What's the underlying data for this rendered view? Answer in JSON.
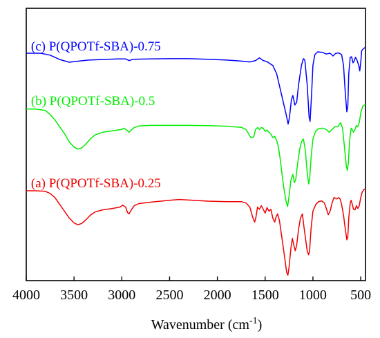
{
  "chart_data": {
    "type": "line",
    "title": "",
    "xlabel": "Wavenumber (cm",
    "xlabel_sup": "-1",
    "xlabel_tail": ")",
    "ylabel": "",
    "xlim": [
      4000,
      450
    ],
    "x_reversed": true,
    "ylim": [
      0,
      1
    ],
    "y_ticks_shown": false,
    "grid": false,
    "legend": "inline labels above each curve",
    "x_ticks": [
      {
        "value": 4000,
        "label": "4000"
      },
      {
        "value": 3500,
        "label": "3500"
      },
      {
        "value": 3000,
        "label": "3000"
      },
      {
        "value": 2500,
        "label": "2500"
      },
      {
        "value": 2000,
        "label": "2000"
      },
      {
        "value": 1500,
        "label": "1500"
      },
      {
        "value": 1000,
        "label": "1000"
      },
      {
        "value": 500,
        "label": "500"
      }
    ],
    "series": [
      {
        "name": "(c) P(QPOTf-SBA)-0.75",
        "color": "#0000ff",
        "label_anchor": [
          3950,
          0.845
        ],
        "points": [
          [
            4000,
            0.835
          ],
          [
            3850,
            0.835
          ],
          [
            3750,
            0.828
          ],
          [
            3650,
            0.812
          ],
          [
            3550,
            0.802
          ],
          [
            3450,
            0.806
          ],
          [
            3350,
            0.81
          ],
          [
            3200,
            0.812
          ],
          [
            3050,
            0.814
          ],
          [
            2960,
            0.814
          ],
          [
            2925,
            0.808
          ],
          [
            2880,
            0.813
          ],
          [
            2700,
            0.814
          ],
          [
            2500,
            0.815
          ],
          [
            2300,
            0.815
          ],
          [
            2100,
            0.813
          ],
          [
            1900,
            0.81
          ],
          [
            1750,
            0.806
          ],
          [
            1660,
            0.803
          ],
          [
            1600,
            0.808
          ],
          [
            1560,
            0.818
          ],
          [
            1520,
            0.808
          ],
          [
            1480,
            0.804
          ],
          [
            1420,
            0.79
          ],
          [
            1380,
            0.76
          ],
          [
            1340,
            0.7
          ],
          [
            1300,
            0.64
          ],
          [
            1280,
            0.61
          ],
          [
            1260,
            0.575
          ],
          [
            1245,
            0.6
          ],
          [
            1225,
            0.665
          ],
          [
            1210,
            0.68
          ],
          [
            1190,
            0.645
          ],
          [
            1170,
            0.655
          ],
          [
            1150,
            0.72
          ],
          [
            1120,
            0.79
          ],
          [
            1100,
            0.815
          ],
          [
            1085,
            0.81
          ],
          [
            1060,
            0.72
          ],
          [
            1040,
            0.6
          ],
          [
            1030,
            0.585
          ],
          [
            1015,
            0.68
          ],
          [
            1000,
            0.79
          ],
          [
            980,
            0.83
          ],
          [
            950,
            0.84
          ],
          [
            900,
            0.838
          ],
          [
            860,
            0.832
          ],
          [
            820,
            0.835
          ],
          [
            790,
            0.825
          ],
          [
            760,
            0.835
          ],
          [
            730,
            0.836
          ],
          [
            700,
            0.83
          ],
          [
            680,
            0.79
          ],
          [
            660,
            0.68
          ],
          [
            645,
            0.62
          ],
          [
            635,
            0.64
          ],
          [
            625,
            0.76
          ],
          [
            610,
            0.82
          ],
          [
            595,
            0.822
          ],
          [
            580,
            0.8
          ],
          [
            570,
            0.805
          ],
          [
            555,
            0.82
          ],
          [
            540,
            0.81
          ],
          [
            520,
            0.79
          ],
          [
            510,
            0.77
          ],
          [
            500,
            0.8
          ],
          [
            490,
            0.845
          ],
          [
            460,
            0.855
          ],
          [
            450,
            0.855
          ]
        ]
      },
      {
        "name": "(b) P(QPOTf-SBA)-0.5",
        "color": "#00ee00",
        "label_anchor": [
          3950,
          0.645
        ],
        "points": [
          [
            4000,
            0.63
          ],
          [
            3900,
            0.63
          ],
          [
            3800,
            0.625
          ],
          [
            3750,
            0.61
          ],
          [
            3700,
            0.59
          ],
          [
            3650,
            0.565
          ],
          [
            3600,
            0.54
          ],
          [
            3550,
            0.51
          ],
          [
            3500,
            0.49
          ],
          [
            3460,
            0.483
          ],
          [
            3420,
            0.487
          ],
          [
            3380,
            0.5
          ],
          [
            3330,
            0.52
          ],
          [
            3280,
            0.535
          ],
          [
            3200,
            0.545
          ],
          [
            3100,
            0.55
          ],
          [
            3000,
            0.555
          ],
          [
            2975,
            0.56
          ],
          [
            2950,
            0.553
          ],
          [
            2925,
            0.545
          ],
          [
            2900,
            0.553
          ],
          [
            2870,
            0.562
          ],
          [
            2820,
            0.568
          ],
          [
            2700,
            0.57
          ],
          [
            2500,
            0.57
          ],
          [
            2300,
            0.57
          ],
          [
            2100,
            0.569
          ],
          [
            1900,
            0.567
          ],
          [
            1750,
            0.563
          ],
          [
            1700,
            0.555
          ],
          [
            1650,
            0.525
          ],
          [
            1620,
            0.528
          ],
          [
            1600,
            0.555
          ],
          [
            1580,
            0.562
          ],
          [
            1560,
            0.555
          ],
          [
            1540,
            0.562
          ],
          [
            1520,
            0.56
          ],
          [
            1500,
            0.548
          ],
          [
            1480,
            0.553
          ],
          [
            1460,
            0.545
          ],
          [
            1440,
            0.538
          ],
          [
            1420,
            0.525
          ],
          [
            1400,
            0.53
          ],
          [
            1380,
            0.515
          ],
          [
            1360,
            0.49
          ],
          [
            1340,
            0.44
          ],
          [
            1320,
            0.38
          ],
          [
            1300,
            0.33
          ],
          [
            1280,
            0.29
          ],
          [
            1265,
            0.272
          ],
          [
            1250,
            0.31
          ],
          [
            1230,
            0.37
          ],
          [
            1210,
            0.39
          ],
          [
            1195,
            0.36
          ],
          [
            1180,
            0.37
          ],
          [
            1160,
            0.43
          ],
          [
            1140,
            0.48
          ],
          [
            1120,
            0.51
          ],
          [
            1100,
            0.52
          ],
          [
            1080,
            0.48
          ],
          [
            1060,
            0.4
          ],
          [
            1045,
            0.355
          ],
          [
            1035,
            0.37
          ],
          [
            1020,
            0.45
          ],
          [
            1000,
            0.52
          ],
          [
            970,
            0.55
          ],
          [
            940,
            0.558
          ],
          [
            900,
            0.56
          ],
          [
            860,
            0.555
          ],
          [
            830,
            0.545
          ],
          [
            800,
            0.555
          ],
          [
            770,
            0.565
          ],
          [
            740,
            0.565
          ],
          [
            710,
            0.58
          ],
          [
            690,
            0.56
          ],
          [
            670,
            0.49
          ],
          [
            650,
            0.42
          ],
          [
            640,
            0.405
          ],
          [
            630,
            0.43
          ],
          [
            615,
            0.52
          ],
          [
            600,
            0.56
          ],
          [
            590,
            0.555
          ],
          [
            575,
            0.545
          ],
          [
            560,
            0.555
          ],
          [
            545,
            0.57
          ],
          [
            530,
            0.565
          ],
          [
            515,
            0.58
          ],
          [
            500,
            0.615
          ],
          [
            480,
            0.64
          ],
          [
            460,
            0.645
          ],
          [
            450,
            0.645
          ]
        ]
      },
      {
        "name": "(a) P(QPOTf-SBA)-0.25",
        "color": "#ee0000",
        "label_anchor": [
          3950,
          0.343
        ],
        "points": [
          [
            4000,
            0.33
          ],
          [
            3900,
            0.33
          ],
          [
            3800,
            0.328
          ],
          [
            3750,
            0.32
          ],
          [
            3700,
            0.305
          ],
          [
            3650,
            0.28
          ],
          [
            3600,
            0.255
          ],
          [
            3550,
            0.23
          ],
          [
            3500,
            0.212
          ],
          [
            3460,
            0.205
          ],
          [
            3420,
            0.21
          ],
          [
            3380,
            0.222
          ],
          [
            3330,
            0.24
          ],
          [
            3280,
            0.252
          ],
          [
            3200,
            0.26
          ],
          [
            3100,
            0.265
          ],
          [
            3020,
            0.27
          ],
          [
            2990,
            0.277
          ],
          [
            2960,
            0.27
          ],
          [
            2940,
            0.25
          ],
          [
            2925,
            0.245
          ],
          [
            2900,
            0.26
          ],
          [
            2870,
            0.275
          ],
          [
            2820,
            0.283
          ],
          [
            2700,
            0.288
          ],
          [
            2500,
            0.295
          ],
          [
            2400,
            0.298
          ],
          [
            2300,
            0.296
          ],
          [
            2100,
            0.292
          ],
          [
            1900,
            0.29
          ],
          [
            1750,
            0.29
          ],
          [
            1700,
            0.285
          ],
          [
            1660,
            0.27
          ],
          [
            1630,
            0.232
          ],
          [
            1610,
            0.215
          ],
          [
            1595,
            0.235
          ],
          [
            1580,
            0.27
          ],
          [
            1560,
            0.262
          ],
          [
            1540,
            0.275
          ],
          [
            1520,
            0.262
          ],
          [
            1500,
            0.248
          ],
          [
            1480,
            0.268
          ],
          [
            1460,
            0.255
          ],
          [
            1440,
            0.262
          ],
          [
            1420,
            0.23
          ],
          [
            1400,
            0.215
          ],
          [
            1385,
            0.235
          ],
          [
            1370,
            0.245
          ],
          [
            1350,
            0.22
          ],
          [
            1330,
            0.17
          ],
          [
            1310,
            0.12
          ],
          [
            1290,
            0.07
          ],
          [
            1275,
            0.03
          ],
          [
            1262,
            0.02
          ],
          [
            1250,
            0.05
          ],
          [
            1230,
            0.12
          ],
          [
            1215,
            0.155
          ],
          [
            1200,
            0.13
          ],
          [
            1185,
            0.11
          ],
          [
            1170,
            0.13
          ],
          [
            1150,
            0.19
          ],
          [
            1130,
            0.23
          ],
          [
            1110,
            0.245
          ],
          [
            1095,
            0.2
          ],
          [
            1080,
            0.16
          ],
          [
            1060,
            0.11
          ],
          [
            1045,
            0.095
          ],
          [
            1035,
            0.11
          ],
          [
            1020,
            0.19
          ],
          [
            1000,
            0.255
          ],
          [
            970,
            0.28
          ],
          [
            940,
            0.29
          ],
          [
            910,
            0.293
          ],
          [
            880,
            0.285
          ],
          [
            860,
            0.265
          ],
          [
            840,
            0.242
          ],
          [
            820,
            0.255
          ],
          [
            800,
            0.285
          ],
          [
            780,
            0.305
          ],
          [
            750,
            0.3
          ],
          [
            730,
            0.305
          ],
          [
            715,
            0.3
          ],
          [
            700,
            0.28
          ],
          [
            680,
            0.24
          ],
          [
            660,
            0.185
          ],
          [
            645,
            0.15
          ],
          [
            635,
            0.16
          ],
          [
            625,
            0.23
          ],
          [
            610,
            0.285
          ],
          [
            600,
            0.295
          ],
          [
            590,
            0.283
          ],
          [
            575,
            0.262
          ],
          [
            560,
            0.26
          ],
          [
            545,
            0.275
          ],
          [
            530,
            0.265
          ],
          [
            515,
            0.275
          ],
          [
            500,
            0.305
          ],
          [
            485,
            0.325
          ],
          [
            465,
            0.335
          ],
          [
            450,
            0.335
          ]
        ]
      }
    ]
  }
}
